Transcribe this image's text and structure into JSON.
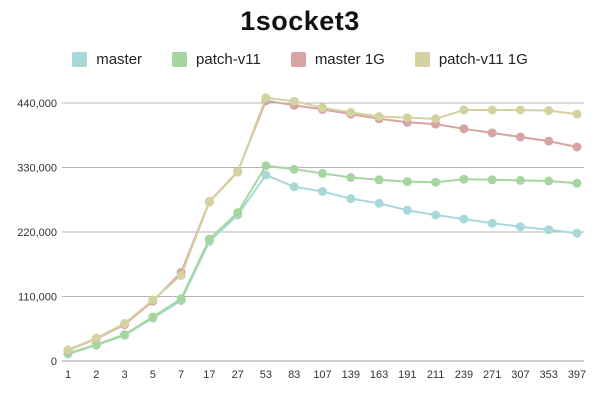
{
  "chart_data": {
    "type": "line",
    "title": "1socket3",
    "grid": true,
    "legend_position": "top",
    "marker": "circle",
    "ylim": [
      0,
      462000
    ],
    "y_ticks": [
      {
        "label": "0",
        "value": 0
      },
      {
        "label": "110,000",
        "value": 110000
      },
      {
        "label": "220,000",
        "value": 220000
      },
      {
        "label": "330,000",
        "value": 330000
      },
      {
        "label": "440,000",
        "value": 440000
      }
    ],
    "categories": [
      "1",
      "2",
      "3",
      "5",
      "7",
      "17",
      "27",
      "53",
      "83",
      "107",
      "139",
      "163",
      "191",
      "211",
      "239",
      "271",
      "307",
      "353",
      "397"
    ],
    "series": [
      {
        "name": "master",
        "color": "#a8d8d8",
        "values": [
          12000,
          27000,
          44000,
          73000,
          103000,
          204000,
          249000,
          317000,
          297000,
          289000,
          277000,
          269000,
          257000,
          249000,
          242000,
          235000,
          229000,
          224000,
          218000
        ]
      },
      {
        "name": "patch-v11",
        "color": "#a5d6a0",
        "values": [
          13000,
          28000,
          45000,
          75000,
          106000,
          208000,
          253000,
          333000,
          327000,
          320000,
          313000,
          309000,
          306000,
          305000,
          310000,
          309000,
          308000,
          307000,
          303000
        ]
      },
      {
        "name": "master 1G",
        "color": "#d8a3a3",
        "values": [
          18000,
          38000,
          62000,
          102000,
          151000,
          272000,
          323000,
          444000,
          436000,
          429000,
          421000,
          413000,
          407000,
          404000,
          396000,
          389000,
          382000,
          375000,
          365000
        ]
      },
      {
        "name": "patch-v11 1G",
        "color": "#d4d2a0",
        "values": [
          19000,
          39000,
          64000,
          104000,
          146000,
          271000,
          322000,
          449000,
          443000,
          432000,
          424000,
          417000,
          415000,
          413000,
          428000,
          428000,
          428000,
          427000,
          421000
        ]
      }
    ]
  }
}
